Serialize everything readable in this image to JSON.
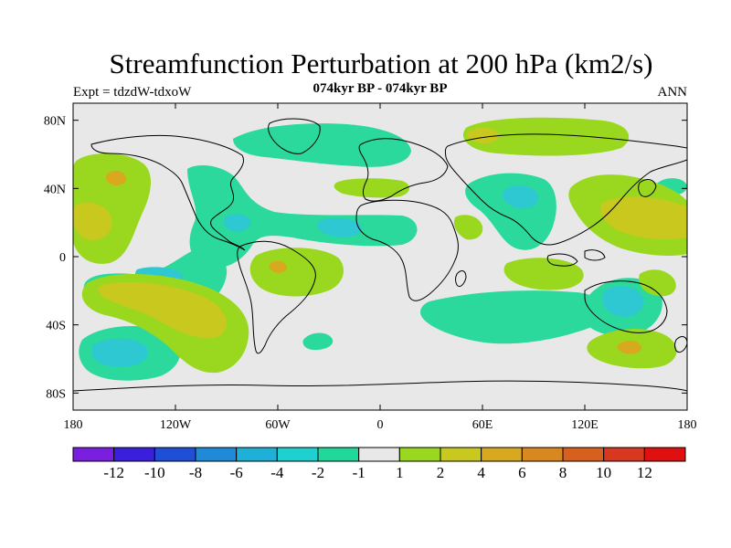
{
  "header": {
    "title": "Streamfunction Perturbation at 200 hPa (km2/s)",
    "experiment": "Expt = tdzdW-tdxoW",
    "period": "074kyr BP - 074kyr BP",
    "season": "ANN"
  },
  "map_axes": {
    "lat_ticks": [
      {
        "label": "80N",
        "value": 80
      },
      {
        "label": "40N",
        "value": 40
      },
      {
        "label": "0",
        "value": 0
      },
      {
        "label": "40S",
        "value": -40
      },
      {
        "label": "80S",
        "value": -80
      }
    ],
    "lon_ticks": [
      {
        "label": "180",
        "value": -180
      },
      {
        "label": "120W",
        "value": -120
      },
      {
        "label": "60W",
        "value": -60
      },
      {
        "label": "0",
        "value": 0
      },
      {
        "label": "60E",
        "value": 60
      },
      {
        "label": "120E",
        "value": 120
      },
      {
        "label": "180",
        "value": 180
      }
    ],
    "lon_range": [
      -180,
      180
    ],
    "lat_range": [
      -90,
      90
    ]
  },
  "colorbar": {
    "colors": [
      "#7a1fe0",
      "#3a1fdc",
      "#1f4fd6",
      "#1f8ad8",
      "#1fb0d8",
      "#1fd0d0",
      "#1fd89a",
      "#e8e8e8",
      "#9ad81f",
      "#c8c81f",
      "#d8a81f",
      "#d8881f",
      "#d8601f",
      "#d8381f",
      "#e01010"
    ],
    "labels": [
      "-12",
      "-10",
      "-8",
      "-6",
      "-4",
      "-2",
      "-1",
      "1",
      "2",
      "4",
      "6",
      "8",
      "10",
      "12"
    ]
  },
  "palette": {
    "background": "#e8e8e8",
    "neg1": "#2ad99b",
    "neg2": "#2ec8d2",
    "pos1": "#9ad81f",
    "pos2": "#c8c81f",
    "pos3": "#d8a81f"
  }
}
